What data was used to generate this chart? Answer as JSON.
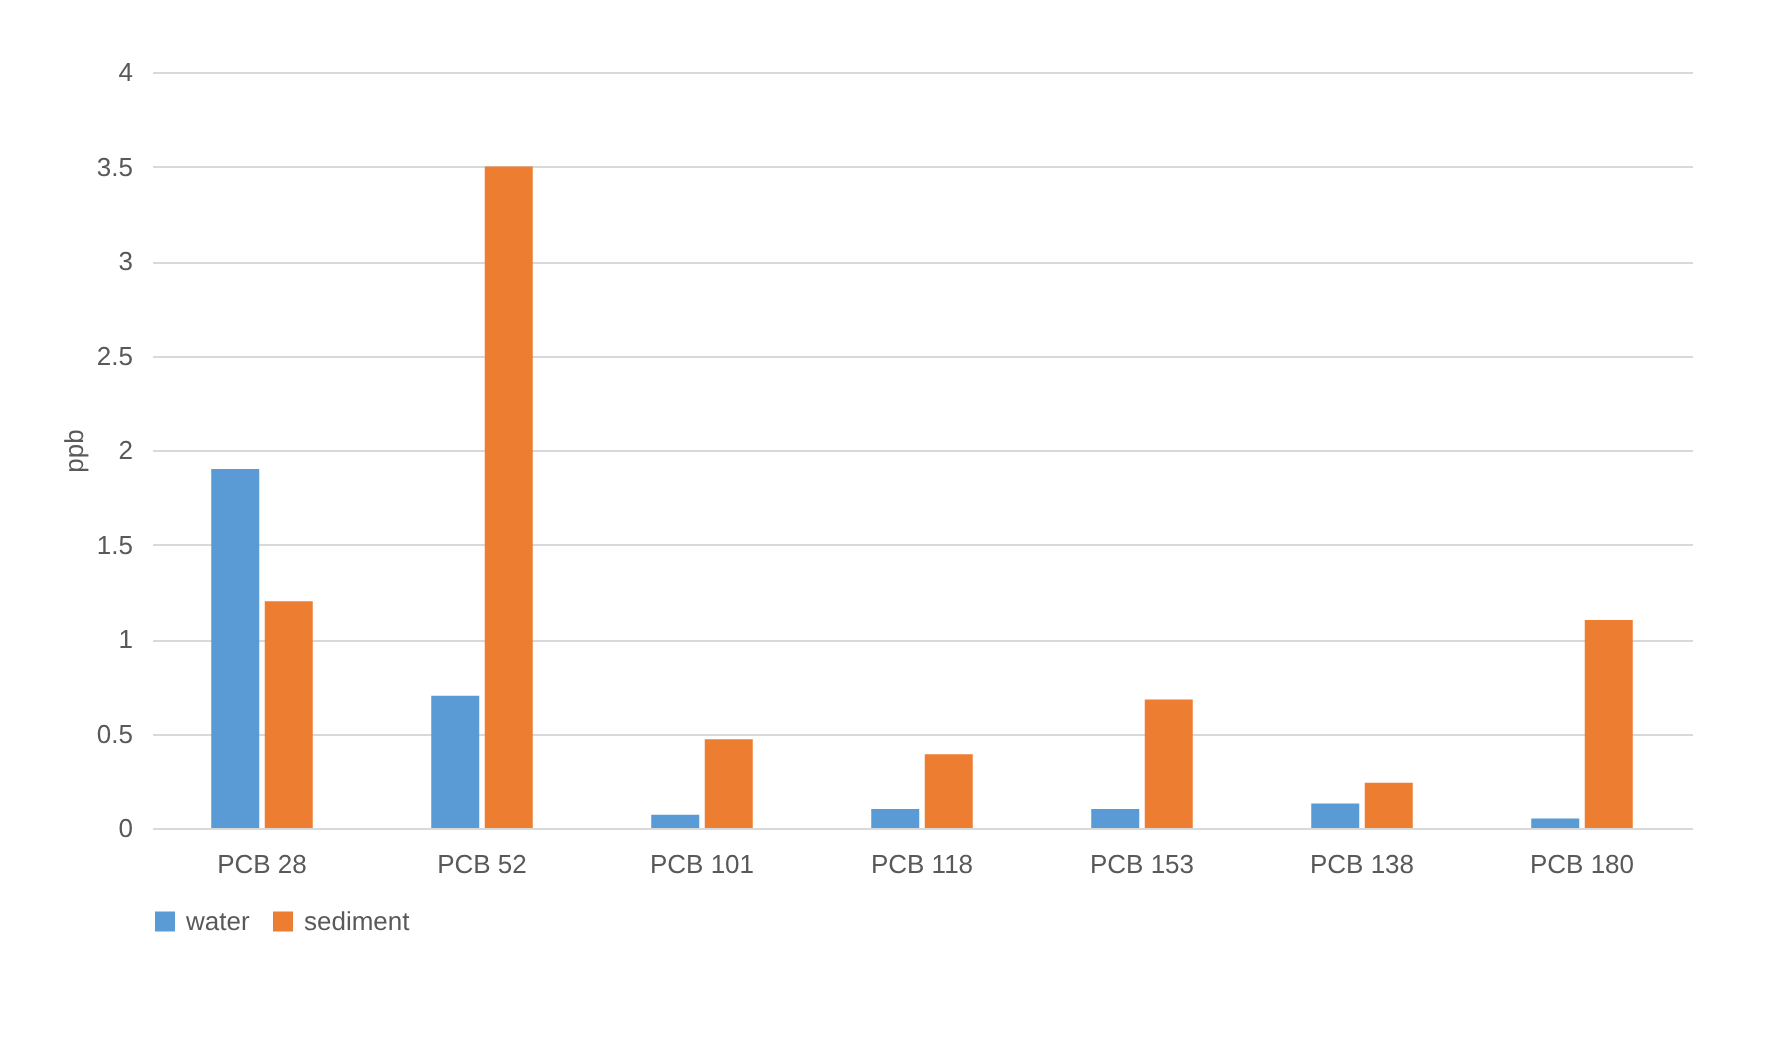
{
  "chart_data": {
    "type": "bar",
    "ylabel": "ppb",
    "categories": [
      "PCB 28",
      "PCB 52",
      "PCB 101",
      "PCB 118",
      "PCB 153",
      "PCB 138",
      "PCB 180"
    ],
    "series": [
      {
        "name": "water",
        "color": "#5b9bd5",
        "values": [
          1.9,
          0.7,
          0.07,
          0.1,
          0.1,
          0.13,
          0.05
        ]
      },
      {
        "name": "sediment",
        "color": "#ed7d31",
        "values": [
          1.2,
          3.5,
          0.47,
          0.39,
          0.68,
          0.24,
          1.1
        ]
      }
    ],
    "ylim": [
      0,
      4
    ],
    "yticks": [
      0,
      0.5,
      1,
      1.5,
      2,
      2.5,
      3,
      3.5,
      4
    ],
    "grid": "y",
    "legend": "bottom"
  }
}
